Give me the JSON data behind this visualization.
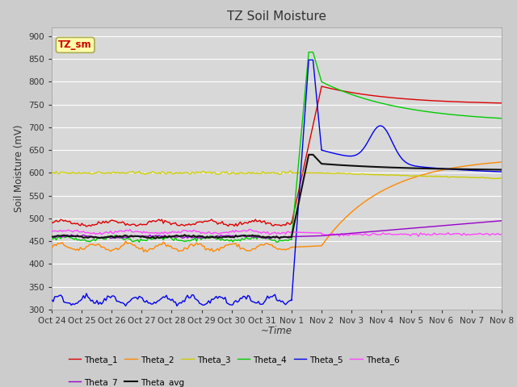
{
  "title": "TZ Soil Moisture",
  "xlabel": "~Time",
  "ylabel": "Soil Moisture (mV)",
  "ylim": [
    300,
    920
  ],
  "yticks": [
    300,
    350,
    400,
    450,
    500,
    550,
    600,
    650,
    700,
    750,
    800,
    850,
    900
  ],
  "fig_bg_color": "#cccccc",
  "plot_bg_color": "#d8d8d8",
  "legend_box_text": "TZ_sm",
  "legend_box_color": "#ffffaa",
  "legend_box_border": "#aaaa55",
  "legend_box_text_color": "#cc0000",
  "series_colors": {
    "Theta_1": "#dd0000",
    "Theta_2": "#ff8800",
    "Theta_3": "#cccc00",
    "Theta_4": "#00cc00",
    "Theta_5": "#0000ee",
    "Theta_6": "#ff44ff",
    "Theta_7": "#9900cc",
    "Theta_avg": "#111111"
  },
  "xtick_labels": [
    "Oct 24",
    "Oct 25",
    "Oct 26",
    "Oct 27",
    "Oct 28",
    "Oct 29",
    "Oct 30",
    "Oct 31",
    "Nov 1",
    "Nov 2",
    "Nov 3",
    "Nov 4",
    "Nov 5",
    "Nov 6",
    "Nov 7",
    "Nov 8"
  ],
  "legend_entries_row1": [
    "Theta_1",
    "Theta_2",
    "Theta_3",
    "Theta_4",
    "Theta_5",
    "Theta_6"
  ],
  "legend_entries_row2": [
    "Theta_7",
    "Theta_avg"
  ]
}
